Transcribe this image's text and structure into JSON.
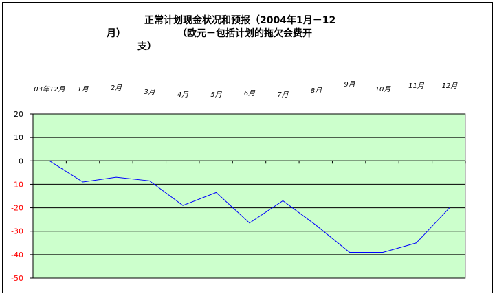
{
  "chart_data": {
    "type": "line",
    "title_lines": [
      "正常计划现金状况和预报（2004年1月－12",
      "月）",
      "（欧元－包括计划的拖欠会费开",
      "支）"
    ],
    "categories": [
      "03年12月",
      "1月",
      "2月",
      "3月",
      "4月",
      "5月",
      "6月",
      "7月",
      "8月",
      "9月",
      "10月",
      "11月",
      "12月"
    ],
    "series": [
      {
        "values": [
          0,
          -9,
          -7,
          -8.5,
          -19,
          -13.5,
          -26.5,
          -17,
          -27.5,
          -39,
          -39,
          -35,
          -20
        ]
      }
    ],
    "ylim": [
      -50,
      20
    ],
    "yticks": [
      20,
      10,
      0,
      -10,
      -20,
      -30,
      -40,
      -50
    ],
    "grid": true,
    "legend": "none",
    "colors": {
      "plot_background": "#ccffcc",
      "line": "#0000ff",
      "gridline": "#000000",
      "negative_tick_label": "#ff0000",
      "positive_tick_label": "#000000"
    }
  }
}
